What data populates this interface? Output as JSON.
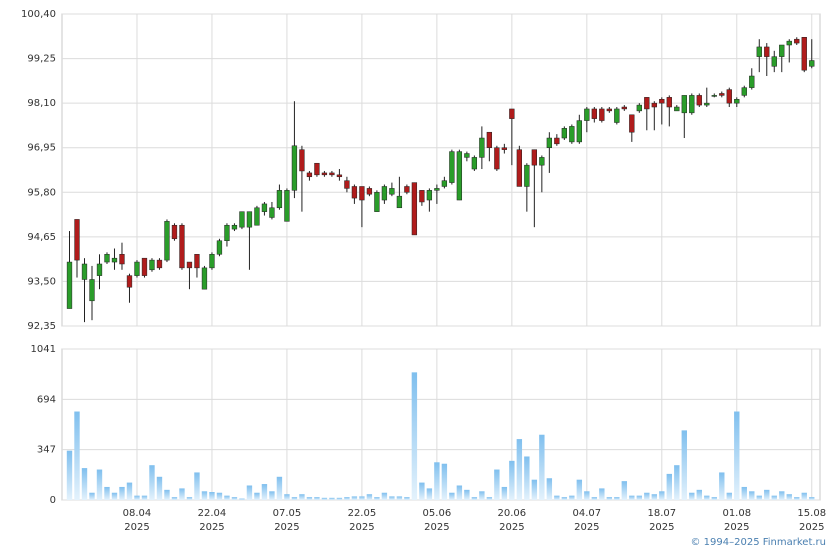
{
  "chart_data": {
    "type": "candlestick",
    "open": [
      92.8,
      95.1,
      93.55,
      93.0,
      93.65,
      94.0,
      94.0,
      94.2,
      93.65,
      93.65,
      94.1,
      93.8,
      94.05,
      94.05,
      94.95,
      94.95,
      94.0,
      94.2,
      93.3,
      93.85,
      94.2,
      94.55,
      94.85,
      94.9,
      94.9,
      94.95,
      95.3,
      95.15,
      95.4,
      95.05,
      95.85,
      96.9,
      96.3,
      96.55,
      96.3,
      96.3,
      96.25,
      96.1,
      95.95,
      95.95,
      95.9,
      95.3,
      95.6,
      95.75,
      95.4,
      95.95,
      96.05,
      95.85,
      95.6,
      95.85,
      95.95,
      96.05,
      95.6,
      96.7,
      96.4,
      96.7,
      97.35,
      96.95,
      96.95,
      97.95,
      96.9,
      95.95,
      96.9,
      96.5,
      96.95,
      97.2,
      97.2,
      97.1,
      97.1,
      97.65,
      97.95,
      97.95,
      97.95,
      97.6,
      98.0,
      97.8,
      97.9,
      98.25,
      98.1,
      98.2,
      98.25,
      97.9,
      97.85,
      97.85,
      98.3,
      98.05,
      98.3,
      98.35,
      98.45,
      98.1,
      98.3,
      98.5,
      99.3,
      99.55,
      99.05,
      99.3,
      99.6,
      99.75,
      99.8,
      99.05
    ],
    "high": [
      94.8,
      95.1,
      94.1,
      93.9,
      94.2,
      94.25,
      94.35,
      94.5,
      93.7,
      94.05,
      94.1,
      94.1,
      94.1,
      95.1,
      95.0,
      95.0,
      94.0,
      94.2,
      93.9,
      94.25,
      94.6,
      95.0,
      95.0,
      95.3,
      95.3,
      95.45,
      95.55,
      95.55,
      96.0,
      95.9,
      98.15,
      97.0,
      96.35,
      96.55,
      96.35,
      96.35,
      96.4,
      96.2,
      96.0,
      95.95,
      95.95,
      95.85,
      96.0,
      96.05,
      96.2,
      96.0,
      96.05,
      95.85,
      95.9,
      96.0,
      96.2,
      96.9,
      96.9,
      96.85,
      96.75,
      97.5,
      97.35,
      97.0,
      97.05,
      97.95,
      97.0,
      96.55,
      96.9,
      96.75,
      97.35,
      97.3,
      97.5,
      97.55,
      97.8,
      98.0,
      98.0,
      98.0,
      98.0,
      98.0,
      98.05,
      97.8,
      98.1,
      98.25,
      98.15,
      98.25,
      98.3,
      98.05,
      98.3,
      98.35,
      98.35,
      98.5,
      98.35,
      98.4,
      98.5,
      98.25,
      98.55,
      99.0,
      99.75,
      99.65,
      99.45,
      99.6,
      99.75,
      99.8,
      99.8,
      99.75
    ],
    "low": [
      92.8,
      93.6,
      92.45,
      92.5,
      93.3,
      93.95,
      93.8,
      93.8,
      92.95,
      93.6,
      93.6,
      93.75,
      93.8,
      94.0,
      94.55,
      93.8,
      93.3,
      93.6,
      93.3,
      93.8,
      94.15,
      94.4,
      94.8,
      94.85,
      93.8,
      94.95,
      95.2,
      95.1,
      95.35,
      95.05,
      95.65,
      95.3,
      96.1,
      96.2,
      96.2,
      96.2,
      96.1,
      95.8,
      95.5,
      94.9,
      95.7,
      95.3,
      95.5,
      95.7,
      95.4,
      95.75,
      94.7,
      95.45,
      95.3,
      95.5,
      95.9,
      96.0,
      95.6,
      96.6,
      96.35,
      96.4,
      96.6,
      96.35,
      96.8,
      96.5,
      95.95,
      95.3,
      94.9,
      95.8,
      96.3,
      97.0,
      97.15,
      97.05,
      97.05,
      97.35,
      97.6,
      97.6,
      97.85,
      97.55,
      97.9,
      97.1,
      97.85,
      97.4,
      97.4,
      97.55,
      97.5,
      97.9,
      97.2,
      97.8,
      98.0,
      98.0,
      98.25,
      98.25,
      98.0,
      98.0,
      98.25,
      98.45,
      98.9,
      98.8,
      98.9,
      98.9,
      99.15,
      99.6,
      98.9,
      99.0
    ],
    "close": [
      94.0,
      94.05,
      93.95,
      93.55,
      93.95,
      94.2,
      94.1,
      93.95,
      93.35,
      94.0,
      93.65,
      94.05,
      93.85,
      95.05,
      94.6,
      93.85,
      93.85,
      93.85,
      93.85,
      94.2,
      94.55,
      94.95,
      94.95,
      95.3,
      95.3,
      95.4,
      95.5,
      95.4,
      95.85,
      95.85,
      97.0,
      96.35,
      96.2,
      96.25,
      96.25,
      96.25,
      96.2,
      95.9,
      95.65,
      95.6,
      95.75,
      95.8,
      95.95,
      95.9,
      95.7,
      95.8,
      94.7,
      95.55,
      95.85,
      95.9,
      96.1,
      96.85,
      96.85,
      96.8,
      96.7,
      97.2,
      96.95,
      96.4,
      96.9,
      97.7,
      95.95,
      96.5,
      96.5,
      96.7,
      97.2,
      97.05,
      97.45,
      97.5,
      97.65,
      97.95,
      97.7,
      97.65,
      97.9,
      97.95,
      97.95,
      97.35,
      98.05,
      97.95,
      98.0,
      98.1,
      98.0,
      98.0,
      98.3,
      98.3,
      98.05,
      98.1,
      98.3,
      98.3,
      98.1,
      98.2,
      98.5,
      98.8,
      99.55,
      99.3,
      99.3,
      99.6,
      99.7,
      99.65,
      98.95,
      99.2
    ],
    "up_color": "#2a9d2a",
    "down_color": "#b01c1c",
    "xlim": [
      -1,
      100.1
    ],
    "xticks": [
      {
        "value": 9,
        "label": "08.04"
      },
      {
        "value": 19,
        "label": "22.04"
      },
      {
        "value": 29,
        "label": "07.05"
      },
      {
        "value": 39,
        "label": "22.05"
      },
      {
        "value": 49,
        "label": "05.06"
      },
      {
        "value": 59,
        "label": "20.06"
      },
      {
        "value": 69,
        "label": "04.07"
      },
      {
        "value": 79,
        "label": "18.07"
      },
      {
        "value": 89,
        "label": "01.08"
      },
      {
        "value": 99,
        "label": "15.08"
      }
    ],
    "xtick_year": "2025",
    "ylim": [
      92.35,
      100.4
    ],
    "yticks": [
      {
        "value": 92.35,
        "label": "92,35"
      },
      {
        "value": 93.5,
        "label": "93,50"
      },
      {
        "value": 94.65,
        "label": "94,65"
      },
      {
        "value": 95.8,
        "label": "95,80"
      },
      {
        "value": 96.95,
        "label": "96,95"
      },
      {
        "value": 98.1,
        "label": "98,10"
      },
      {
        "value": 99.25,
        "label": "99,25"
      },
      {
        "value": 100.4,
        "label": "100,40"
      }
    ],
    "grid": true,
    "volume": {
      "color": "#7fbfee",
      "values": [
        340,
        610,
        220,
        50,
        210,
        90,
        50,
        90,
        120,
        30,
        30,
        240,
        160,
        70,
        20,
        80,
        20,
        190,
        60,
        55,
        50,
        30,
        20,
        10,
        100,
        50,
        110,
        60,
        160,
        40,
        20,
        40,
        20,
        20,
        15,
        15,
        15,
        20,
        25,
        25,
        40,
        20,
        50,
        25,
        25,
        20,
        880,
        120,
        80,
        260,
        250,
        50,
        100,
        70,
        20,
        60,
        20,
        210,
        90,
        270,
        420,
        300,
        140,
        450,
        150,
        30,
        20,
        30,
        140,
        60,
        20,
        80,
        20,
        20,
        130,
        30,
        30,
        50,
        40,
        60,
        180,
        240,
        480,
        50,
        70,
        30,
        20,
        190,
        50,
        610,
        90,
        60,
        30,
        70,
        30,
        60,
        40,
        20,
        50,
        20
      ],
      "ylim": [
        0,
        1041
      ],
      "yticks": [
        0,
        347,
        694,
        1041
      ]
    }
  },
  "footer": "© 1994–2025 Finmarket.ru"
}
